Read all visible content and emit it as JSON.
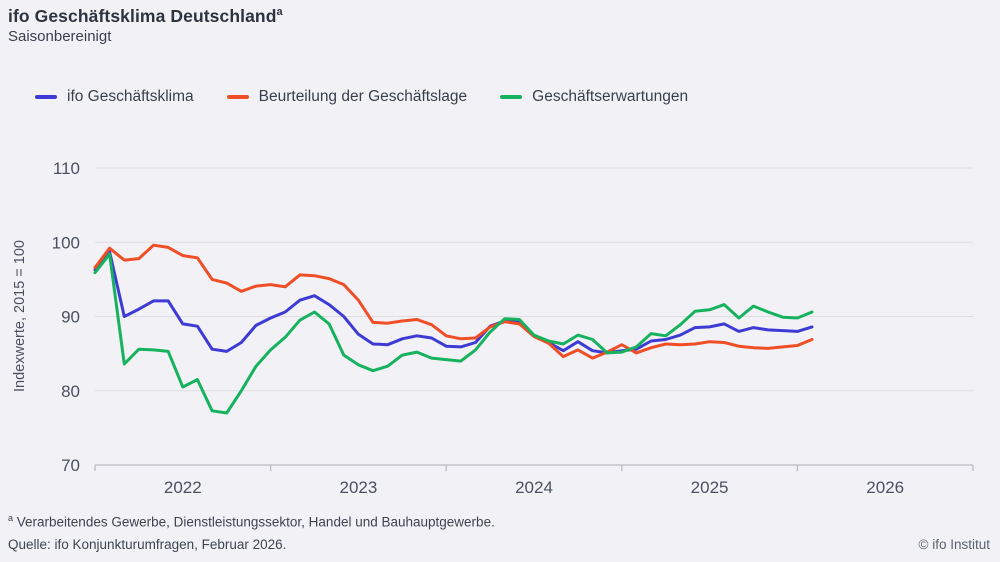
{
  "header": {
    "title": "ifo Geschäftsklima Deutschland",
    "title_superscript": "a",
    "subtitle": "Saisonbereinigt"
  },
  "footer": {
    "footnote_marker": "a",
    "footnote_text": " Verarbeitendes Gewerbe, Dienstleistungssektor, Handel und Bauhauptgewerbe.",
    "source": "Quelle: ifo Konjunkturumfragen, Februar 2026.",
    "copyright": "© ifo Institut"
  },
  "chart_data": {
    "type": "line",
    "title": "ifo Geschäftsklima Deutschland",
    "subtitle": "Saisonbereinigt",
    "ylabel": "Indexwerte, 2015 = 100",
    "ylim": [
      70,
      110
    ],
    "yticks": [
      70,
      80,
      90,
      100,
      110
    ],
    "x_frequency": "monthly",
    "x_start": "2022-01",
    "x_end": "2026-02",
    "x_axis_span_months": 60,
    "x_tick_year_starts": [
      "2022-01",
      "2023-01",
      "2024-01",
      "2025-01",
      "2026-01",
      "2027-01"
    ],
    "x_year_labels": [
      "2022",
      "2023",
      "2024",
      "2025",
      "2026"
    ],
    "grid": true,
    "legend_position": "top",
    "colors": {
      "background": "#f2f2f6",
      "gridline": "#dddde2",
      "axis": "#b9bbc2",
      "text": "#4b5060"
    },
    "series": [
      {
        "name": "ifo Geschäftsklima",
        "color": "#3e3bd4",
        "values": [
          96.3,
          98.7,
          90.0,
          91.0,
          92.1,
          92.1,
          89.0,
          88.7,
          85.6,
          85.3,
          86.5,
          88.8,
          89.8,
          90.6,
          92.2,
          92.8,
          91.6,
          90.0,
          87.6,
          86.3,
          86.2,
          87.0,
          87.4,
          87.1,
          86.0,
          85.9,
          86.5,
          88.7,
          89.4,
          89.2,
          87.4,
          86.5,
          85.4,
          86.6,
          85.4,
          85.1,
          85.4,
          85.6,
          86.7,
          86.9,
          87.5,
          88.5,
          88.6,
          89.0,
          88.0,
          88.5,
          88.2,
          88.1,
          88.0,
          88.6
        ]
      },
      {
        "name": "Beurteilung der Geschäftslage",
        "color": "#f04e26",
        "values": [
          96.6,
          99.2,
          97.6,
          97.8,
          99.6,
          99.3,
          98.2,
          97.9,
          95.0,
          94.5,
          93.4,
          94.1,
          94.3,
          94.0,
          95.6,
          95.5,
          95.1,
          94.3,
          92.2,
          89.2,
          89.1,
          89.4,
          89.6,
          88.9,
          87.4,
          87.0,
          87.1,
          88.6,
          89.3,
          89.0,
          87.3,
          86.4,
          84.6,
          85.5,
          84.4,
          85.2,
          86.2,
          85.1,
          85.8,
          86.3,
          86.2,
          86.3,
          86.6,
          86.5,
          86.0,
          85.8,
          85.7,
          85.9,
          86.1,
          86.9
        ]
      },
      {
        "name": "Geschäftserwartungen",
        "color": "#17b25e",
        "values": [
          95.9,
          98.4,
          83.6,
          85.6,
          85.5,
          85.3,
          80.5,
          81.5,
          77.3,
          77.0,
          80.0,
          83.3,
          85.5,
          87.2,
          89.5,
          90.6,
          89.0,
          84.8,
          83.5,
          82.7,
          83.3,
          84.8,
          85.2,
          84.4,
          84.2,
          84.0,
          85.5,
          87.9,
          89.7,
          89.6,
          87.5,
          86.7,
          86.3,
          87.5,
          86.9,
          85.1,
          85.2,
          85.9,
          87.7,
          87.4,
          88.9,
          90.7,
          90.9,
          91.6,
          89.8,
          91.4,
          90.6,
          89.9,
          89.8,
          90.6
        ]
      }
    ]
  }
}
